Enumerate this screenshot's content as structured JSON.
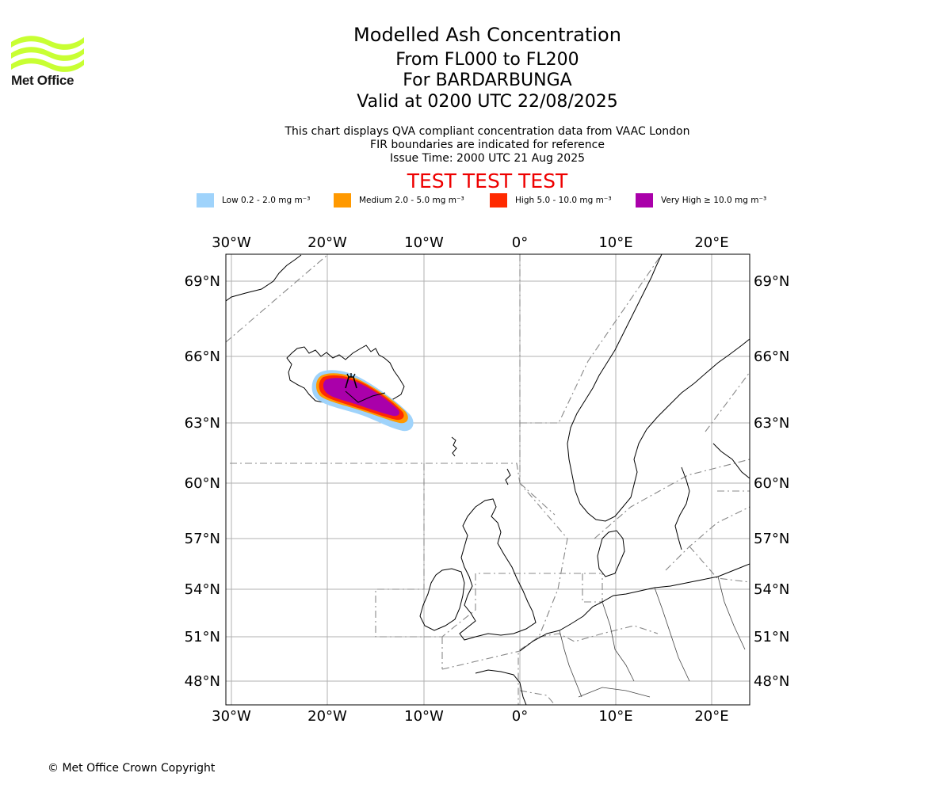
{
  "branding": {
    "logo_text": "Met Office",
    "logo_color": "#c8ff33"
  },
  "title": {
    "line1": "Modelled Ash Concentration",
    "line2": "From FL000 to FL200",
    "line3": "For BARDARBUNGA",
    "line4": "Valid at 0200 UTC 22/08/2025"
  },
  "subtitle": {
    "line1": "This chart displays QVA compliant concentration data from VAAC London",
    "line2": "FIR boundaries are indicated for reference",
    "line3": "Issue Time: 2000 UTC 21 Aug 2025"
  },
  "banner": {
    "text": "TEST TEST TEST",
    "color": "#ee0000"
  },
  "legend": [
    {
      "label": "Low 0.2 - 2.0 mg m⁻³",
      "color": "#9fd3fb"
    },
    {
      "label": "Medium 2.0 - 5.0 mg m⁻³",
      "color": "#ff9900"
    },
    {
      "label": "High 5.0 - 10.0 mg m⁻³",
      "color": "#ff2a00"
    },
    {
      "label": "Very High ≥ 10.0 mg m⁻³",
      "color": "#aa00aa"
    }
  ],
  "map": {
    "lon_ticks": [
      "30°W",
      "20°W",
      "10°W",
      "0°",
      "10°E",
      "20°E"
    ],
    "lat_ticks": [
      "69°N",
      "66°N",
      "63°N",
      "60°N",
      "57°N",
      "54°N",
      "51°N",
      "48°N"
    ],
    "volcano": {
      "name": "BARDARBUNGA",
      "icon": "volcano-icon"
    }
  },
  "footer": {
    "copyright": "© Met Office Crown Copyright"
  }
}
